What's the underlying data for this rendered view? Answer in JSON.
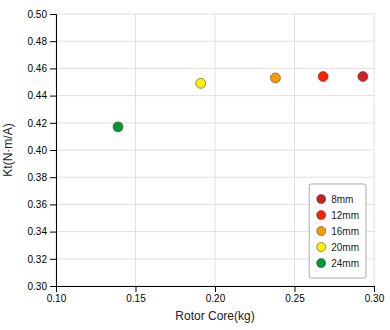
{
  "chart_data": {
    "type": "scatter",
    "xlabel": "Rotor Core(kg)",
    "ylabel": "Kt(N·m/A)",
    "series": [
      {
        "name": "8mm",
        "color": "#cc2222",
        "x": [
          0.293
        ],
        "values": [
          0.454
        ]
      },
      {
        "name": "12mm",
        "color": "#ff2200",
        "x": [
          0.268
        ],
        "values": [
          0.454
        ]
      },
      {
        "name": "16mm",
        "color": "#ff9900",
        "x": [
          0.238
        ],
        "values": [
          0.453
        ]
      },
      {
        "name": "20mm",
        "color": "#ffee00",
        "x": [
          0.191
        ],
        "values": [
          0.449
        ]
      },
      {
        "name": "24mm",
        "color": "#009933",
        "x": [
          0.139
        ],
        "values": [
          0.417
        ]
      }
    ],
    "xlim": [
      0.1,
      0.3
    ],
    "ylim": [
      0.3,
      0.5
    ],
    "xticks": [
      {
        "value": 0.1,
        "label": "0.10"
      },
      0.15,
      {
        "value": 0.2,
        "label": "0.20"
      },
      0.25,
      {
        "value": 0.3,
        "label": "0.30"
      }
    ],
    "yticks": [
      {
        "value": 0.3,
        "label": "0.30"
      },
      0.32,
      0.34,
      0.36,
      0.38,
      {
        "value": 0.4,
        "label": "0.40"
      },
      0.42,
      0.44,
      0.46,
      0.48,
      {
        "value": 0.5,
        "label": "0.50"
      }
    ],
    "grid": true,
    "legend": "lower right"
  }
}
